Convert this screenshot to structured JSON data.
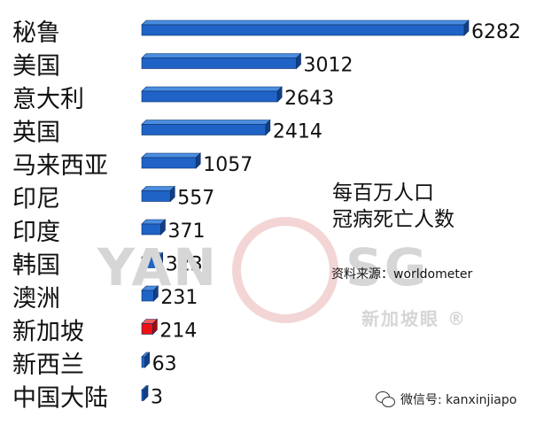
{
  "chart_data": {
    "type": "bar",
    "orientation": "horizontal",
    "categories": [
      "秘鲁",
      "美国",
      "意大利",
      "英国",
      "马来西亚",
      "印尼",
      "印度",
      "韩国",
      "澳洲",
      "新加坡",
      "新西兰",
      "中国大陆"
    ],
    "values": [
      6282,
      3012,
      2643,
      2414,
      1057,
      557,
      371,
      323,
      231,
      214,
      63,
      3
    ],
    "highlight_index": 9,
    "bar_color": "#1f63c6",
    "bar_side_color": "#123f86",
    "bar_top_color": "#4a8de0",
    "highlight_color": "#ee1111",
    "highlight_side_color": "#a30d0d",
    "highlight_top_color": "#ff5a5a",
    "highlight_label_color": "#ee1111",
    "xlim": [
      0,
      6282
    ],
    "grid": false,
    "legend": "none"
  },
  "annotation": {
    "title_line1": "每百万人口",
    "title_line2": "冠病死亡人数",
    "source": "资料来源：worldometer"
  },
  "watermark": {
    "left": "YAN",
    "right": "SG",
    "brand": "新加坡眼 ®"
  },
  "footer": {
    "icon": "wechat-icon",
    "text": "微信号: kanxinjiapo"
  }
}
